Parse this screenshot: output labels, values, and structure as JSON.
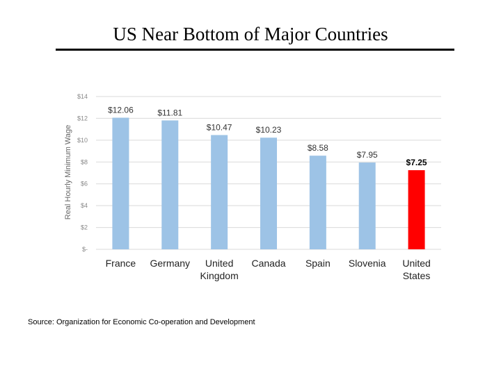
{
  "slide": {
    "title": "US Near Bottom of Major Countries",
    "source": "Source: Organization for Economic Co-operation and Development"
  },
  "chart_data": {
    "type": "bar",
    "title": "",
    "xlabel": "",
    "ylabel": "Real Hourly Minimum Wage",
    "ylim": [
      0,
      14
    ],
    "yticks": [
      0,
      2,
      4,
      6,
      8,
      10,
      12,
      14
    ],
    "ytick_labels": [
      "$-",
      "$2",
      "$4",
      "$6",
      "$8",
      "$10",
      "$12",
      "$14"
    ],
    "grid": true,
    "categories": [
      [
        "France"
      ],
      [
        "Germany"
      ],
      [
        "United",
        "Kingdom"
      ],
      [
        "Canada"
      ],
      [
        "Spain"
      ],
      [
        "Slovenia"
      ],
      [
        "United",
        "States"
      ]
    ],
    "values": [
      12.06,
      11.81,
      10.47,
      10.23,
      8.58,
      7.95,
      7.25
    ],
    "data_labels": [
      "$12.06",
      "$11.81",
      "$10.47",
      "$10.23",
      "$8.58",
      "$7.95",
      "$7.25"
    ],
    "highlight_index": 6,
    "colors": {
      "bar": "#9DC3E6",
      "highlight": "#FF0000",
      "grid": "#D9D9D9"
    }
  }
}
